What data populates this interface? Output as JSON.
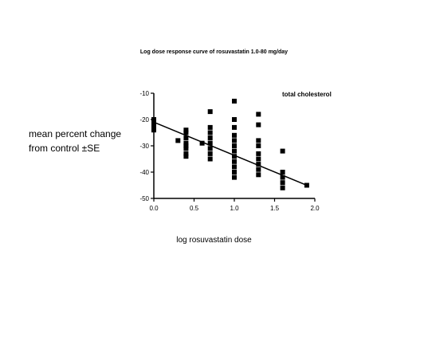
{
  "chart_data": {
    "type": "scatter",
    "title": "Log dose response curve of rosuvastatin 1.0-80 mg/day",
    "xlabel": "log rosuvastatin dose",
    "ylabel_line1": "mean percent change",
    "ylabel_line2": "from control ±SE",
    "annotation": "total cholesterol",
    "xlim": [
      0.0,
      2.0
    ],
    "ylim": [
      -50,
      -10
    ],
    "xticks": [
      0.0,
      0.5,
      1.0,
      1.5,
      2.0
    ],
    "xtick_labels": [
      "0.0",
      "0.5",
      "1.0",
      "1.5",
      "2.0"
    ],
    "yticks": [
      -10,
      -20,
      -30,
      -40,
      -50
    ],
    "ytick_labels": [
      "-10",
      "-20",
      "-30",
      "-40",
      "-50"
    ],
    "grid": false,
    "marker": "square",
    "color": "#000000",
    "points": [
      [
        0.0,
        -20
      ],
      [
        0.0,
        -21
      ],
      [
        0.0,
        -22
      ],
      [
        0.0,
        -23
      ],
      [
        0.0,
        -24
      ],
      [
        0.3,
        -28
      ],
      [
        0.4,
        -24
      ],
      [
        0.4,
        -25
      ],
      [
        0.4,
        -27
      ],
      [
        0.4,
        -29
      ],
      [
        0.4,
        -30
      ],
      [
        0.4,
        -31
      ],
      [
        0.4,
        -33
      ],
      [
        0.4,
        -34
      ],
      [
        0.6,
        -29
      ],
      [
        0.7,
        -17
      ],
      [
        0.7,
        -23
      ],
      [
        0.7,
        -25
      ],
      [
        0.7,
        -27
      ],
      [
        0.7,
        -29
      ],
      [
        0.7,
        -31
      ],
      [
        0.7,
        -33
      ],
      [
        0.7,
        -35
      ],
      [
        1.0,
        -13
      ],
      [
        1.0,
        -20
      ],
      [
        1.0,
        -23
      ],
      [
        1.0,
        -26
      ],
      [
        1.0,
        -28
      ],
      [
        1.0,
        -30
      ],
      [
        1.0,
        -32
      ],
      [
        1.0,
        -34
      ],
      [
        1.0,
        -36
      ],
      [
        1.0,
        -38
      ],
      [
        1.0,
        -40
      ],
      [
        1.0,
        -42
      ],
      [
        1.3,
        -18
      ],
      [
        1.3,
        -22
      ],
      [
        1.3,
        -28
      ],
      [
        1.3,
        -30
      ],
      [
        1.3,
        -33
      ],
      [
        1.3,
        -35
      ],
      [
        1.3,
        -37
      ],
      [
        1.3,
        -39
      ],
      [
        1.3,
        -41
      ],
      [
        1.6,
        -32
      ],
      [
        1.6,
        -40
      ],
      [
        1.6,
        -42
      ],
      [
        1.6,
        -44
      ],
      [
        1.6,
        -46
      ],
      [
        1.9,
        -45
      ]
    ],
    "fit_line": {
      "x": [
        0.0,
        1.9
      ],
      "y": [
        -21,
        -45
      ]
    }
  }
}
